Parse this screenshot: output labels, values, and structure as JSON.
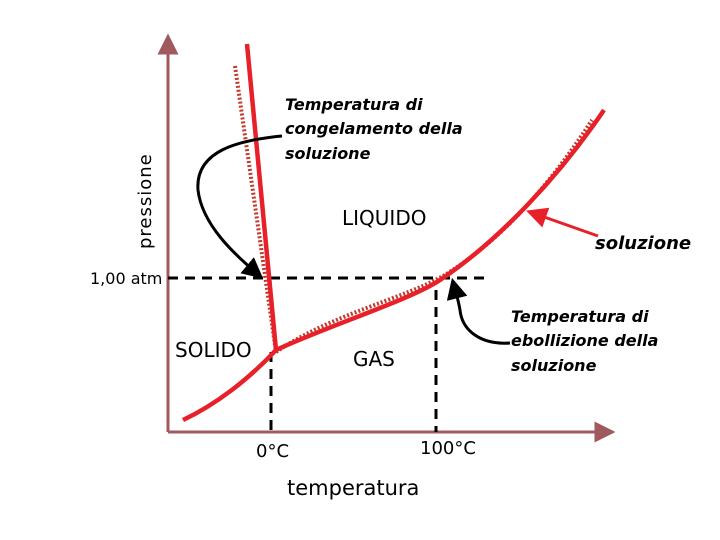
{
  "axes": {
    "y_label": "pressione",
    "x_label": "temperatura",
    "pressure_marker": "1,00 atm",
    "freezing_marker": "0°C",
    "boiling_marker": "100°C"
  },
  "regions": {
    "solid": "SOLIDO",
    "liquid": "LIQUIDO",
    "gas": "GAS"
  },
  "annotations": {
    "freezing_point": [
      "Temperatura di",
      "congelamento della",
      "soluzione"
    ],
    "boiling_point": [
      "Temperatura di",
      "ebollizione della",
      "soluzione"
    ],
    "solution_curve": "soluzione"
  },
  "colors": {
    "axis": "#a0595c",
    "pure_curve": "#e8202a",
    "solution_curve": "#c0392b",
    "guide": "#000000"
  }
}
